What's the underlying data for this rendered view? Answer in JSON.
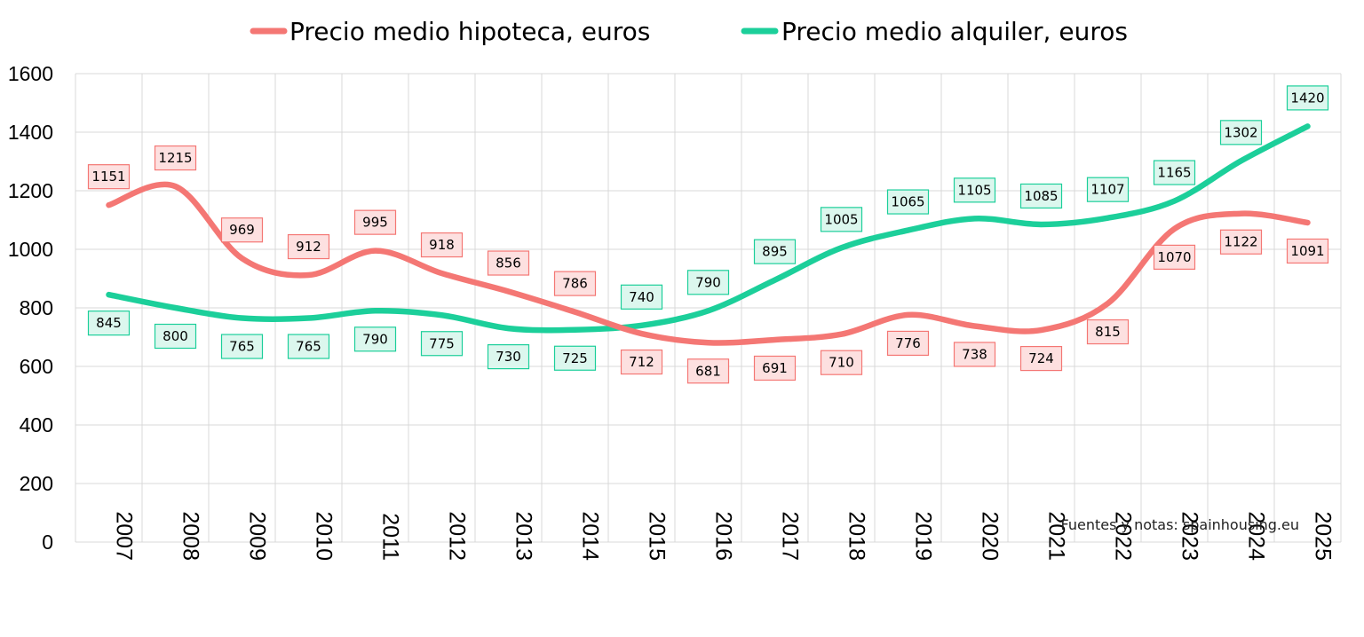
{
  "chart_data": {
    "type": "line",
    "title": "",
    "xlabel": "",
    "ylabel": "",
    "ylim": [
      0,
      1600
    ],
    "yticks": [
      "0",
      "200",
      "400",
      "600",
      "800",
      "1000",
      "1200",
      "1400",
      "1600"
    ],
    "grid": true,
    "legend_position": "top",
    "smooth": true,
    "categories": [
      "2007",
      "2008",
      "2009",
      "2010",
      "2011",
      "2012",
      "2013",
      "2014",
      "2015",
      "2016",
      "2017",
      "2018",
      "2019",
      "2020",
      "2021",
      "2022",
      "2023",
      "2024",
      "2025"
    ],
    "series": [
      {
        "name": "Precio medio hipoteca, euros",
        "color": "#f47774",
        "label_fill": "#fde0e0",
        "label_border": "#f47774",
        "values": [
          1151,
          1215,
          969,
          912,
          995,
          918,
          856,
          786,
          712,
          681,
          691,
          710,
          776,
          738,
          724,
          815,
          1070,
          1122,
          1091
        ],
        "label_text": [
          "1151",
          "1215",
          "969",
          "912",
          "995",
          "918",
          "856",
          "786",
          "712",
          "681",
          "691",
          "710",
          "776",
          "738",
          "724",
          "815",
          "1070",
          "1122",
          "1091"
        ]
      },
      {
        "name": "Precio medio alquiler, euros",
        "color": "#1ccf9a",
        "label_fill": "#dcf7ee",
        "label_border": "#1ccf9a",
        "values": [
          845,
          800,
          765,
          765,
          790,
          775,
          730,
          725,
          740,
          790,
          895,
          1005,
          1065,
          1105,
          1085,
          1107,
          1165,
          1302,
          1420
        ],
        "label_text": [
          "845",
          "800",
          "765",
          "765",
          "790",
          "775",
          "730",
          "725",
          "740",
          "790",
          "895",
          "1005",
          "1065",
          "1105",
          "1085",
          "1107",
          "1165",
          "1302",
          "1420"
        ]
      }
    ],
    "annotation": "Fuentes y notas: spainhousing.eu"
  }
}
